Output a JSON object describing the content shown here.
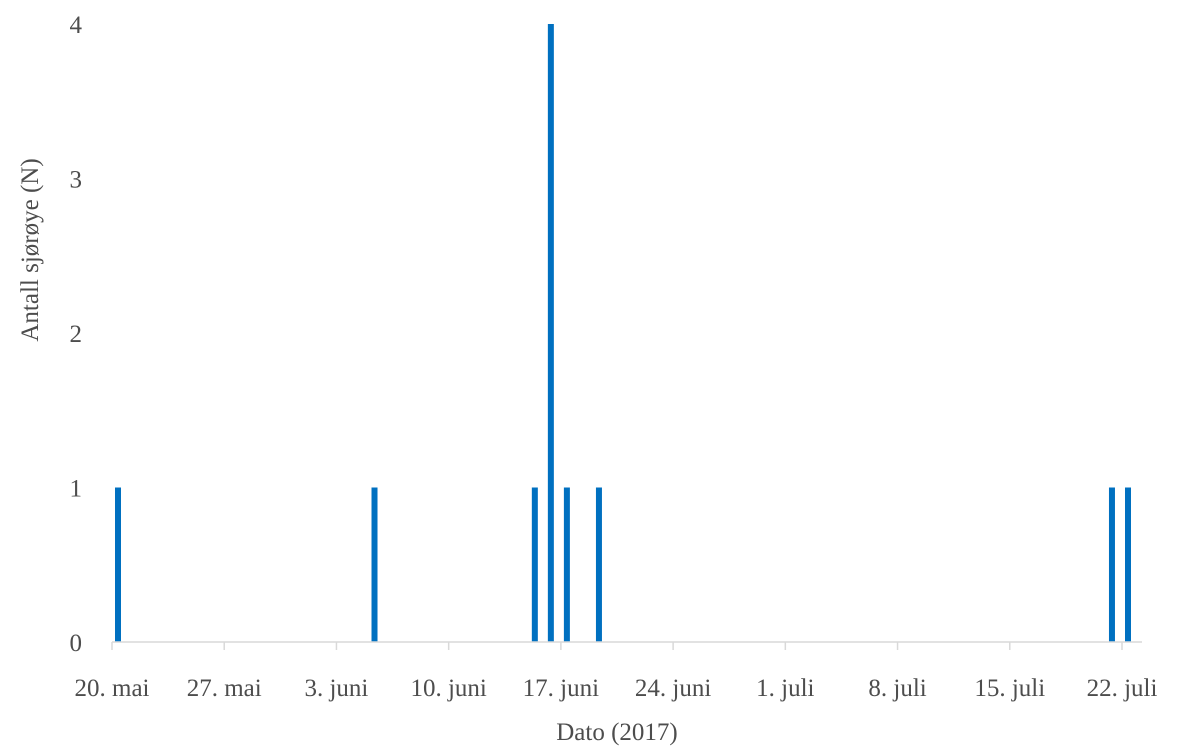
{
  "chart_data": {
    "type": "bar",
    "title": "",
    "xlabel": "Dato (2017)",
    "ylabel": "Antall sjørøye (N)",
    "x_type": "date",
    "xlim": [
      "2017-05-20",
      "2017-07-22"
    ],
    "ylim": [
      0,
      4
    ],
    "y_ticks": [
      0,
      1,
      2,
      3,
      4
    ],
    "x_ticks": [
      {
        "date": "2017-05-20",
        "label": "20. mai"
      },
      {
        "date": "2017-05-27",
        "label": "27. mai"
      },
      {
        "date": "2017-06-03",
        "label": "3. juni"
      },
      {
        "date": "2017-06-10",
        "label": "10. juni"
      },
      {
        "date": "2017-06-17",
        "label": "17. juni"
      },
      {
        "date": "2017-06-24",
        "label": "24. juni"
      },
      {
        "date": "2017-07-01",
        "label": "1. juli"
      },
      {
        "date": "2017-07-08",
        "label": "8. juli"
      },
      {
        "date": "2017-07-15",
        "label": "15. juli"
      },
      {
        "date": "2017-07-22",
        "label": "22. juli"
      }
    ],
    "grid": false,
    "color": "#0070c0",
    "points": [
      {
        "x": "2017-05-20",
        "y": 1
      },
      {
        "x": "2017-06-05",
        "y": 1
      },
      {
        "x": "2017-06-15",
        "y": 1
      },
      {
        "x": "2017-06-16",
        "y": 4
      },
      {
        "x": "2017-06-17",
        "y": 1
      },
      {
        "x": "2017-06-19",
        "y": 1
      },
      {
        "x": "2017-07-21",
        "y": 1
      },
      {
        "x": "2017-07-22",
        "y": 1
      }
    ]
  }
}
